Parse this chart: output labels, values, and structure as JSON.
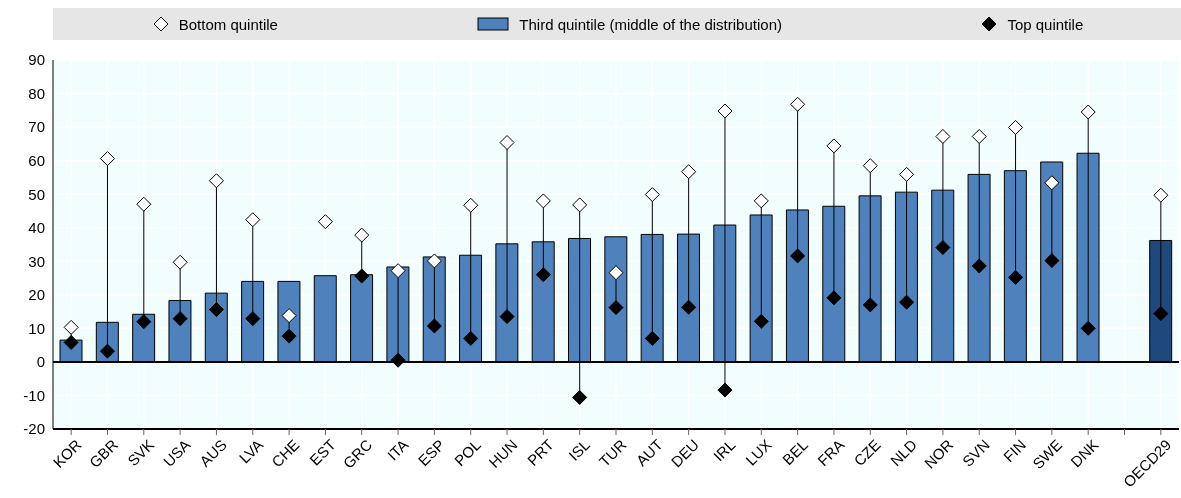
{
  "chart_data": {
    "type": "bar",
    "categories": [
      "KOR",
      "GBR",
      "SVK",
      "USA",
      "AUS",
      "LVA",
      "CHE",
      "EST",
      "GRC",
      "ITA",
      "ESP",
      "POL",
      "HUN",
      "PRT",
      "ISL",
      "TUR",
      "AUT",
      "DEU",
      "IRL",
      "LUX",
      "BEL",
      "FRA",
      "CZE",
      "NLD",
      "NOR",
      "SVN",
      "FIN",
      "SWE",
      "DNK",
      null,
      "OECD29"
    ],
    "series": [
      {
        "name": "Bottom quintile",
        "type": "scatter",
        "marker": "diamond",
        "color": "#ffffff",
        "values": [
          10.3,
          60.6,
          47,
          29.7,
          54,
          42.4,
          13.8,
          41.8,
          37.8,
          27.2,
          30.1,
          46.7,
          65.4,
          48,
          46.8,
          26.6,
          49.9,
          56.7,
          74.8,
          48,
          76.8,
          64.4,
          58.5,
          55.9,
          67.2,
          67.2,
          69.9,
          53.4,
          74.5,
          null,
          49.7
        ]
      },
      {
        "name": "Third quintile (middle of the distribution)",
        "color": "#4f81bd",
        "colors": [
          "#4f81bd",
          "#4f81bd",
          "#4f81bd",
          "#4f81bd",
          "#4f81bd",
          "#4f81bd",
          "#4f81bd",
          "#4f81bd",
          "#4f81bd",
          "#4f81bd",
          "#4f81bd",
          "#4f81bd",
          "#4f81bd",
          "#4f81bd",
          "#4f81bd",
          "#4f81bd",
          "#4f81bd",
          "#4f81bd",
          "#4f81bd",
          "#4f81bd",
          "#4f81bd",
          "#4f81bd",
          "#4f81bd",
          "#4f81bd",
          "#4f81bd",
          "#4f81bd",
          "#4f81bd",
          "#4f81bd",
          "#4f81bd",
          "#4f81bd",
          "#1f497d"
        ],
        "values": [
          6.5,
          11.8,
          14.2,
          18.3,
          20.5,
          24,
          24,
          25.7,
          26,
          28.3,
          31.3,
          31.8,
          35.2,
          35.8,
          36.8,
          37.3,
          38,
          38.1,
          40.8,
          43.8,
          45.3,
          46.4,
          49.5,
          50.6,
          51.2,
          55.9,
          57,
          59.6,
          62.2,
          null,
          36.2
        ]
      },
      {
        "name": "Top quintile",
        "type": "scatter",
        "marker": "diamond",
        "color": "#000000",
        "values": [
          5.8,
          3.2,
          12,
          12.9,
          15.6,
          12.9,
          7.7,
          null,
          25.6,
          0.5,
          10.7,
          7,
          13.5,
          26,
          -10.6,
          16.2,
          7,
          16.3,
          -8.4,
          12.1,
          31.6,
          19.1,
          17,
          17.8,
          34.1,
          28.6,
          25.2,
          30.2,
          10,
          null,
          14.4
        ]
      }
    ],
    "ylim": [
      -20,
      90
    ],
    "yticks": [
      -20,
      -10,
      0,
      10,
      20,
      30,
      40,
      50,
      60,
      70,
      80,
      90
    ],
    "grid": true,
    "legend": "top"
  }
}
